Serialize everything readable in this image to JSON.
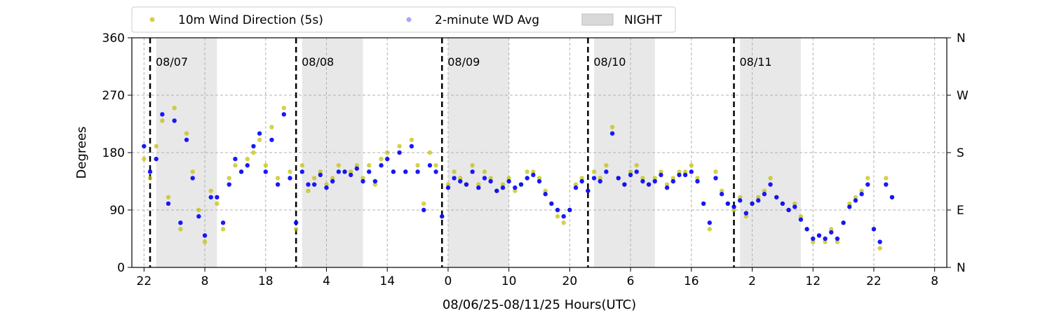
{
  "chart_data": {
    "type": "scatter",
    "title": "",
    "xlabel": "08/06/25-08/11/25  Hours(UTC)",
    "ylabel": "Degrees",
    "xlim": [
      -2,
      132
    ],
    "ylim": [
      0,
      360
    ],
    "xtick_values": [
      0,
      10,
      20,
      30,
      40,
      50,
      60,
      70,
      80,
      90,
      100,
      110,
      120,
      130
    ],
    "xtick_labels": [
      "22",
      "8",
      "18",
      "4",
      "14",
      "0",
      "10",
      "20",
      "6",
      "16",
      "2",
      "12",
      "22",
      "8"
    ],
    "yticks_left": [
      0,
      90,
      180,
      270,
      360
    ],
    "yticks_right": [
      {
        "value": 0,
        "label": "N"
      },
      {
        "value": 90,
        "label": "E"
      },
      {
        "value": 180,
        "label": "S"
      },
      {
        "value": 270,
        "label": "W"
      },
      {
        "value": 360,
        "label": "N"
      }
    ],
    "grid": true,
    "legend_position": "top",
    "legend": [
      {
        "label": "10m Wind Direction (5s)",
        "color": "#bfbf00",
        "kind": "marker"
      },
      {
        "label": "2-minute WD Avg",
        "color": "#0000ff",
        "kind": "marker"
      },
      {
        "label": "NIGHT",
        "color": "#d9d9d9",
        "kind": "patch"
      }
    ],
    "night_periods": [
      [
        2,
        12
      ],
      [
        26,
        36
      ],
      [
        50,
        60
      ],
      [
        74,
        84
      ],
      [
        98,
        108
      ]
    ],
    "day_markers": [
      {
        "x": 1,
        "label": "08/07"
      },
      {
        "x": 25,
        "label": "08/08"
      },
      {
        "x": 49,
        "label": "08/09"
      },
      {
        "x": 73,
        "label": "08/10"
      },
      {
        "x": 97,
        "label": "08/11"
      }
    ],
    "series": [
      {
        "name": "10m Wind Direction (5s)",
        "color": "#bfbf00",
        "x": [
          0,
          1,
          2,
          3,
          4,
          5,
          6,
          7,
          8,
          9,
          10,
          11,
          12,
          13,
          14,
          15,
          16,
          17,
          18,
          19,
          20,
          21,
          22,
          23,
          24,
          25,
          26,
          27,
          28,
          29,
          30,
          31,
          32,
          33,
          34,
          35,
          36,
          37,
          38,
          39,
          40,
          41,
          42,
          43,
          44,
          45,
          46,
          47,
          48,
          49,
          50,
          51,
          52,
          53,
          54,
          55,
          56,
          57,
          58,
          59,
          60,
          61,
          62,
          63,
          64,
          65,
          66,
          67,
          68,
          69,
          70,
          71,
          72,
          73,
          74,
          75,
          76,
          77,
          78,
          79,
          80,
          81,
          82,
          83,
          84,
          85,
          86,
          87,
          88,
          89,
          90,
          91,
          92,
          93,
          94,
          95,
          96,
          97,
          98,
          99,
          100,
          101,
          102,
          103,
          104,
          105,
          106,
          107,
          108,
          109,
          110,
          111,
          112,
          113,
          114,
          115,
          116,
          117,
          118,
          119,
          120,
          121,
          122,
          123
        ],
        "y": [
          170,
          140,
          190,
          230,
          110,
          250,
          60,
          210,
          150,
          90,
          40,
          120,
          100,
          60,
          140,
          160,
          150,
          170,
          180,
          200,
          160,
          220,
          140,
          250,
          150,
          60,
          160,
          120,
          140,
          150,
          130,
          140,
          160,
          150,
          150,
          160,
          140,
          160,
          130,
          170,
          180,
          150,
          190,
          150,
          200,
          160,
          100,
          180,
          160,
          80,
          130,
          150,
          140,
          130,
          160,
          130,
          150,
          140,
          120,
          130,
          140,
          120,
          130,
          150,
          150,
          140,
          120,
          100,
          80,
          70,
          90,
          130,
          140,
          120,
          150,
          140,
          160,
          220,
          140,
          130,
          150,
          160,
          140,
          130,
          140,
          150,
          130,
          140,
          150,
          150,
          160,
          140,
          100,
          60,
          150,
          120,
          100,
          90,
          110,
          80,
          100,
          110,
          120,
          140,
          110,
          100,
          90,
          100,
          80,
          60,
          40,
          50,
          40,
          60,
          40,
          70,
          100,
          110,
          120,
          140,
          60,
          30,
          140,
          110
        ]
      },
      {
        "name": "2-minute WD Avg",
        "color": "#0000ff",
        "x": [
          0,
          1,
          2,
          3,
          4,
          5,
          6,
          7,
          8,
          9,
          10,
          11,
          12,
          13,
          14,
          15,
          16,
          17,
          18,
          19,
          20,
          21,
          22,
          23,
          24,
          25,
          26,
          27,
          28,
          29,
          30,
          31,
          32,
          33,
          34,
          35,
          36,
          37,
          38,
          39,
          40,
          41,
          42,
          43,
          44,
          45,
          46,
          47,
          48,
          49,
          50,
          51,
          52,
          53,
          54,
          55,
          56,
          57,
          58,
          59,
          60,
          61,
          62,
          63,
          64,
          65,
          66,
          67,
          68,
          69,
          70,
          71,
          72,
          73,
          74,
          75,
          76,
          77,
          78,
          79,
          80,
          81,
          82,
          83,
          84,
          85,
          86,
          87,
          88,
          89,
          90,
          91,
          92,
          93,
          94,
          95,
          96,
          97,
          98,
          99,
          100,
          101,
          102,
          103,
          104,
          105,
          106,
          107,
          108,
          109,
          110,
          111,
          112,
          113,
          114,
          115,
          116,
          117,
          118,
          119,
          120,
          121,
          122,
          123
        ],
        "y": [
          190,
          150,
          170,
          240,
          100,
          230,
          70,
          200,
          140,
          80,
          50,
          110,
          110,
          70,
          130,
          170,
          150,
          160,
          190,
          210,
          150,
          200,
          130,
          240,
          140,
          70,
          150,
          130,
          130,
          145,
          125,
          135,
          150,
          150,
          145,
          155,
          135,
          150,
          135,
          160,
          170,
          150,
          180,
          150,
          190,
          150,
          90,
          160,
          150,
          80,
          125,
          140,
          135,
          130,
          150,
          125,
          140,
          135,
          120,
          125,
          135,
          125,
          130,
          140,
          145,
          135,
          115,
          100,
          90,
          80,
          90,
          125,
          135,
          120,
          140,
          135,
          150,
          210,
          140,
          130,
          145,
          150,
          135,
          130,
          135,
          145,
          125,
          135,
          145,
          145,
          150,
          135,
          100,
          70,
          140,
          115,
          100,
          95,
          105,
          85,
          100,
          105,
          115,
          130,
          110,
          100,
          90,
          95,
          75,
          60,
          45,
          50,
          45,
          55,
          45,
          70,
          95,
          105,
          115,
          130,
          60,
          40,
          130,
          110
        ]
      }
    ]
  }
}
